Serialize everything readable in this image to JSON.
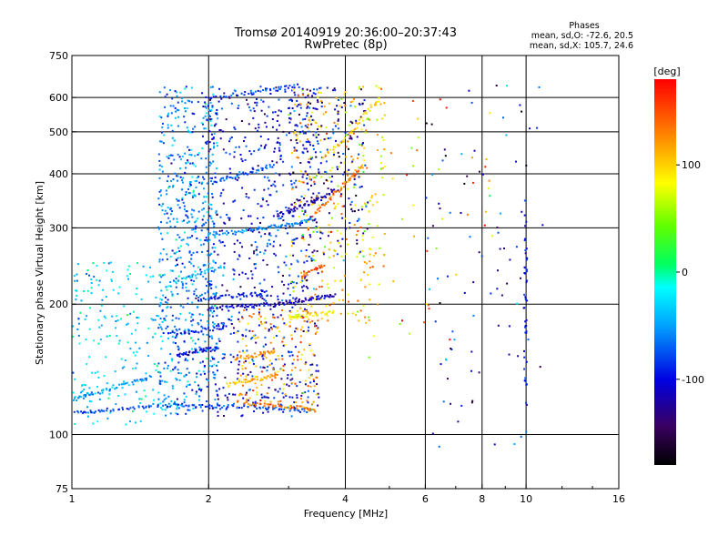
{
  "chart_data": {
    "type": "scatter",
    "title": "Tromsø 20140919 20:36:00–20:37:43",
    "subtitle": "RwPretec (8p)",
    "xlabel": "Frequency [MHz]",
    "ylabel": "Stationary phase Virtual Height [km]",
    "x_scale": "log",
    "y_scale": "log",
    "xlim": [
      1,
      16
    ],
    "ylim": [
      75,
      750
    ],
    "x_ticks": [
      1,
      2,
      4,
      6,
      8,
      10,
      16
    ],
    "x_tick_labels": [
      "1",
      "2",
      "4",
      "6",
      "8",
      "10",
      "16"
    ],
    "y_ticks": [
      75,
      100,
      200,
      300,
      400,
      500,
      600,
      750
    ],
    "y_tick_labels": [
      "75",
      "100",
      "200",
      "300",
      "400",
      "500",
      "600",
      "750"
    ],
    "grid": true,
    "stats": {
      "heading": "Phases",
      "line1": "mean, sd,O: -72.6, 20.5",
      "line2": "mean, sd,X: 105.7, 24.6"
    },
    "colorbar": {
      "label": "[deg]",
      "range": [
        -180,
        180
      ],
      "tick_values": [
        100,
        0,
        -100
      ],
      "tick_labels": [
        "100",
        "0",
        "-100"
      ],
      "colormap": "rainbow-black-purple-blue-cyan-green-yellow-orange-red"
    },
    "series_traces": [
      {
        "phase": -80,
        "points": [
          [
            1.02,
            112
          ],
          [
            1.1,
            113
          ],
          [
            1.2,
            114
          ],
          [
            1.35,
            115
          ],
          [
            1.5,
            117
          ],
          [
            1.7,
            117
          ],
          [
            1.9,
            116
          ],
          [
            2.1,
            116
          ],
          [
            2.4,
            116
          ],
          [
            2.8,
            115
          ],
          [
            3.1,
            114
          ],
          [
            3.4,
            113
          ]
        ]
      },
      {
        "phase": -50,
        "points": [
          [
            1.0,
            120
          ],
          [
            1.05,
            122
          ],
          [
            1.1,
            124
          ],
          [
            1.2,
            127
          ],
          [
            1.3,
            130
          ],
          [
            1.4,
            133
          ],
          [
            1.5,
            136
          ]
        ]
      },
      {
        "phase": -100,
        "points": [
          [
            1.7,
            152
          ],
          [
            1.8,
            154
          ],
          [
            1.9,
            156
          ],
          [
            2.0,
            157
          ],
          [
            2.1,
            158
          ]
        ]
      },
      {
        "phase": -95,
        "points": [
          [
            1.6,
            170
          ],
          [
            1.8,
            172
          ],
          [
            2.0,
            175
          ],
          [
            2.2,
            178
          ]
        ]
      },
      {
        "phase": -110,
        "points": [
          [
            2.0,
            195
          ],
          [
            2.2,
            197
          ],
          [
            2.4,
            198
          ],
          [
            2.6,
            199
          ],
          [
            2.8,
            200
          ],
          [
            3.0,
            202
          ],
          [
            3.2,
            204
          ],
          [
            3.4,
            206
          ],
          [
            3.6,
            208
          ],
          [
            3.8,
            210
          ]
        ]
      },
      {
        "phase": -90,
        "points": [
          [
            1.9,
            205
          ],
          [
            2.1,
            207
          ],
          [
            2.3,
            209
          ],
          [
            2.5,
            211
          ],
          [
            2.7,
            213
          ]
        ]
      },
      {
        "phase": 110,
        "points": [
          [
            2.2,
            130
          ],
          [
            2.35,
            132
          ],
          [
            2.5,
            134
          ],
          [
            2.7,
            136
          ],
          [
            2.8,
            138
          ]
        ]
      },
      {
        "phase": 120,
        "points": [
          [
            2.3,
            150
          ],
          [
            2.5,
            152
          ],
          [
            2.7,
            154
          ],
          [
            2.8,
            156
          ]
        ]
      },
      {
        "phase": 130,
        "points": [
          [
            2.4,
            118
          ],
          [
            2.7,
            117
          ],
          [
            3.0,
            116
          ],
          [
            3.3,
            115
          ],
          [
            3.45,
            114
          ]
        ]
      },
      {
        "phase": 90,
        "points": [
          [
            3.0,
            185
          ],
          [
            3.2,
            188
          ],
          [
            3.5,
            190
          ],
          [
            3.8,
            192
          ]
        ]
      },
      {
        "phase": -60,
        "points": [
          [
            2.0,
            290
          ],
          [
            2.2,
            292
          ],
          [
            2.4,
            295
          ],
          [
            2.6,
            298
          ],
          [
            2.8,
            302
          ],
          [
            3.0,
            306
          ],
          [
            3.2,
            310
          ],
          [
            3.4,
            315
          ]
        ]
      },
      {
        "phase": -120,
        "points": [
          [
            2.8,
            320
          ],
          [
            3.0,
            328
          ],
          [
            3.2,
            336
          ],
          [
            3.4,
            345
          ],
          [
            3.6,
            355
          ],
          [
            3.8,
            368
          ]
        ]
      },
      {
        "phase": 140,
        "points": [
          [
            3.4,
            320
          ],
          [
            3.6,
            340
          ],
          [
            3.8,
            360
          ],
          [
            4.0,
            380
          ],
          [
            4.2,
            400
          ],
          [
            4.4,
            420
          ]
        ]
      },
      {
        "phase": 100,
        "points": [
          [
            3.6,
            440
          ],
          [
            3.9,
            470
          ],
          [
            4.2,
            510
          ],
          [
            4.5,
            560
          ],
          [
            4.8,
            600
          ]
        ]
      },
      {
        "phase": -70,
        "points": [
          [
            2.0,
            380
          ],
          [
            2.2,
            390
          ],
          [
            2.4,
            400
          ],
          [
            2.6,
            410
          ],
          [
            2.8,
            420
          ]
        ]
      },
      {
        "phase": -40,
        "points": [
          [
            1.6,
            220
          ],
          [
            1.8,
            230
          ],
          [
            2.0,
            240
          ],
          [
            2.2,
            245
          ]
        ]
      },
      {
        "phase": 150,
        "points": [
          [
            3.2,
            230
          ],
          [
            3.4,
            240
          ],
          [
            3.6,
            248
          ]
        ]
      },
      {
        "phase": -85,
        "points": [
          [
            2.0,
            600
          ],
          [
            2.3,
            610
          ],
          [
            2.6,
            620
          ],
          [
            2.9,
            630
          ],
          [
            3.2,
            640
          ]
        ]
      }
    ],
    "series_clouds": [
      {
        "phase": -60,
        "spread": 40,
        "x": [
          1.55,
          2.1
        ],
        "y": [
          110,
          640
        ],
        "n": 700
      },
      {
        "phase": -100,
        "spread": 40,
        "x": [
          2.0,
          3.5
        ],
        "y": [
          110,
          640
        ],
        "n": 700
      },
      {
        "phase": -30,
        "spread": 30,
        "x": [
          1.0,
          1.6
        ],
        "y": [
          105,
          250
        ],
        "n": 200
      },
      {
        "phase": 120,
        "spread": 40,
        "x": [
          2.3,
          3.5
        ],
        "y": [
          115,
          200
        ],
        "n": 180
      },
      {
        "phase": 100,
        "spread": 50,
        "x": [
          3.0,
          4.9
        ],
        "y": [
          180,
          640
        ],
        "n": 320
      },
      {
        "phase": -110,
        "spread": 50,
        "x": [
          3.0,
          4.5
        ],
        "y": [
          250,
          640
        ],
        "n": 200
      },
      {
        "phase": -100,
        "spread": 60,
        "x": [
          6.0,
          11.0
        ],
        "y": [
          90,
          640
        ],
        "n": 90
      },
      {
        "phase": 120,
        "spread": 60,
        "x": [
          4.5,
          8.5
        ],
        "y": [
          150,
          640
        ],
        "n": 45
      },
      {
        "phase": -100,
        "spread": 20,
        "x": [
          9.9,
          10.05
        ],
        "y": [
          110,
          360
        ],
        "n": 45
      }
    ]
  }
}
